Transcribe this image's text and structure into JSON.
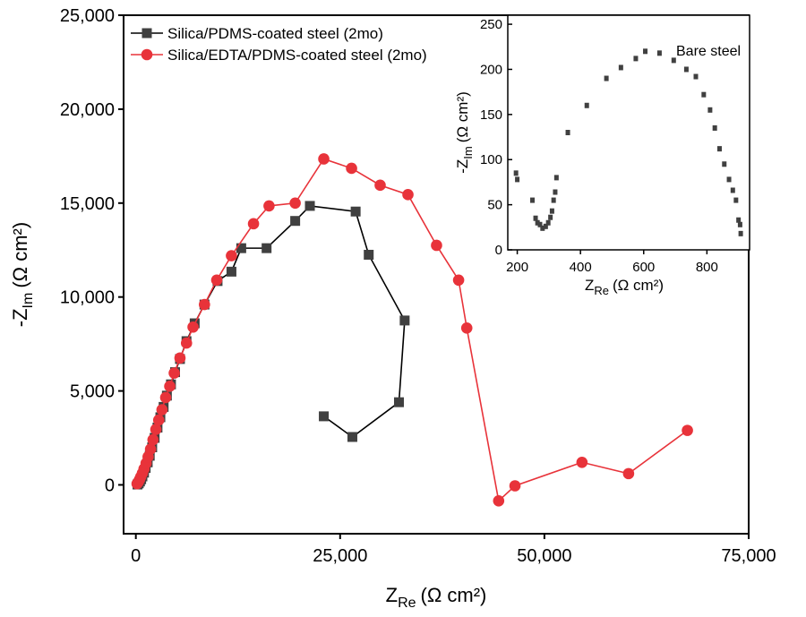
{
  "chart_data": [
    {
      "type": "line",
      "xlabel": "Z",
      "xlabel_sub": "Re",
      "xlabel_unit": "(Ω cm²)",
      "ylabel": "-Z",
      "ylabel_sub": "Im",
      "ylabel_unit": "(Ω cm²)",
      "xlim": [
        -1500,
        75000
      ],
      "ylim": [
        -2600,
        25000
      ],
      "x_ticks": [
        0,
        25000,
        50000,
        75000
      ],
      "x_tick_labels": [
        "0",
        "25,000",
        "50,000",
        "75,000"
      ],
      "y_ticks": [
        0,
        5000,
        10000,
        15000,
        20000,
        25000
      ],
      "y_tick_labels": [
        "0",
        "5,000",
        "10,000",
        "15,000",
        "20,000",
        "25,000"
      ],
      "grid": false,
      "legend_position": "top-left",
      "series": [
        {
          "name": "Silica/PDMS-coated steel (2mo)",
          "color": "#404040",
          "marker": "square",
          "points": [
            [
              200,
              20
            ],
            [
              350,
              80
            ],
            [
              500,
              180
            ],
            [
              650,
              300
            ],
            [
              800,
              450
            ],
            [
              1000,
              650
            ],
            [
              1200,
              900
            ],
            [
              1450,
              1200
            ],
            [
              1700,
              1550
            ],
            [
              2000,
              2000
            ],
            [
              2300,
              2500
            ],
            [
              2650,
              3050
            ],
            [
              3000,
              3600
            ],
            [
              3400,
              4150
            ],
            [
              3800,
              4750
            ],
            [
              4300,
              5350
            ],
            [
              4800,
              6000
            ],
            [
              5400,
              6700
            ],
            [
              6200,
              7650
            ],
            [
              7200,
              8600
            ],
            [
              8400,
              9600
            ],
            [
              10000,
              10850
            ],
            [
              11700,
              11350
            ],
            [
              12900,
              12600
            ],
            [
              16000,
              12600
            ],
            [
              19500,
              14050
            ],
            [
              21300,
              14850
            ],
            [
              26900,
              14550
            ],
            [
              28500,
              12250
            ],
            [
              32900,
              8750
            ],
            [
              32200,
              4400
            ],
            [
              26500,
              2550
            ],
            [
              23000,
              3650
            ]
          ]
        },
        {
          "name": "Silica/EDTA/PDMS-coated steel (2mo)",
          "color": "#e8333a",
          "marker": "circle",
          "points": [
            [
              150,
              60
            ],
            [
              300,
              150
            ],
            [
              450,
              280
            ],
            [
              600,
              430
            ],
            [
              800,
              620
            ],
            [
              1000,
              850
            ],
            [
              1250,
              1150
            ],
            [
              1500,
              1500
            ],
            [
              1800,
              1900
            ],
            [
              2100,
              2400
            ],
            [
              2450,
              2950
            ],
            [
              2800,
              3450
            ],
            [
              3200,
              4000
            ],
            [
              3650,
              4650
            ],
            [
              4150,
              5250
            ],
            [
              4700,
              5950
            ],
            [
              5400,
              6750
            ],
            [
              6200,
              7550
            ],
            [
              7000,
              8400
            ],
            [
              8400,
              9600
            ],
            [
              9900,
              10900
            ],
            [
              11700,
              12200
            ],
            [
              14400,
              13900
            ],
            [
              16300,
              14850
            ],
            [
              19500,
              15000
            ],
            [
              23000,
              17350
            ],
            [
              26400,
              16850
            ],
            [
              29900,
              15950
            ],
            [
              33300,
              15450
            ],
            [
              36800,
              12750
            ],
            [
              39500,
              10900
            ],
            [
              40500,
              8350
            ],
            [
              44400,
              -850
            ],
            [
              46400,
              -50
            ],
            [
              54600,
              1200
            ],
            [
              60300,
              600
            ],
            [
              67500,
              2900
            ]
          ]
        }
      ]
    },
    {
      "type": "scatter",
      "annotation": "Bare steel",
      "xlabel": "Z",
      "xlabel_sub": "Re",
      "xlabel_unit": "(Ω cm²)",
      "ylabel": "-Z",
      "ylabel_sub": "Im",
      "ylabel_unit": "(Ω cm²)",
      "xlim": [
        170,
        935
      ],
      "ylim": [
        0,
        260
      ],
      "x_ticks": [
        200,
        400,
        600,
        800
      ],
      "x_tick_labels": [
        "200",
        "400",
        "600",
        "800"
      ],
      "y_ticks": [
        0,
        50,
        100,
        150,
        200,
        250
      ],
      "y_tick_labels": [
        "0",
        "50",
        "100",
        "150",
        "200",
        "250"
      ],
      "grid": false,
      "series": [
        {
          "name": "",
          "color": "#404040",
          "marker": "square",
          "points": [
            [
              196,
              85
            ],
            [
              200,
              78
            ],
            [
              248,
              55
            ],
            [
              258,
              35
            ],
            [
              264,
              30
            ],
            [
              272,
              28
            ],
            [
              280,
              24
            ],
            [
              290,
              26
            ],
            [
              298,
              30
            ],
            [
              305,
              36
            ],
            [
              310,
              43
            ],
            [
              315,
              55
            ],
            [
              320,
              64
            ],
            [
              324,
              80
            ],
            [
              360,
              130
            ],
            [
              420,
              160
            ],
            [
              482,
              190
            ],
            [
              528,
              202
            ],
            [
              575,
              212
            ],
            [
              605,
              220
            ],
            [
              650,
              218
            ],
            [
              695,
              210
            ],
            [
              735,
              200
            ],
            [
              765,
              192
            ],
            [
              790,
              172
            ],
            [
              810,
              155
            ],
            [
              825,
              135
            ],
            [
              840,
              112
            ],
            [
              855,
              95
            ],
            [
              870,
              78
            ],
            [
              882,
              66
            ],
            [
              892,
              55
            ],
            [
              900,
              33
            ],
            [
              905,
              28
            ],
            [
              907,
              18
            ]
          ]
        }
      ]
    }
  ]
}
